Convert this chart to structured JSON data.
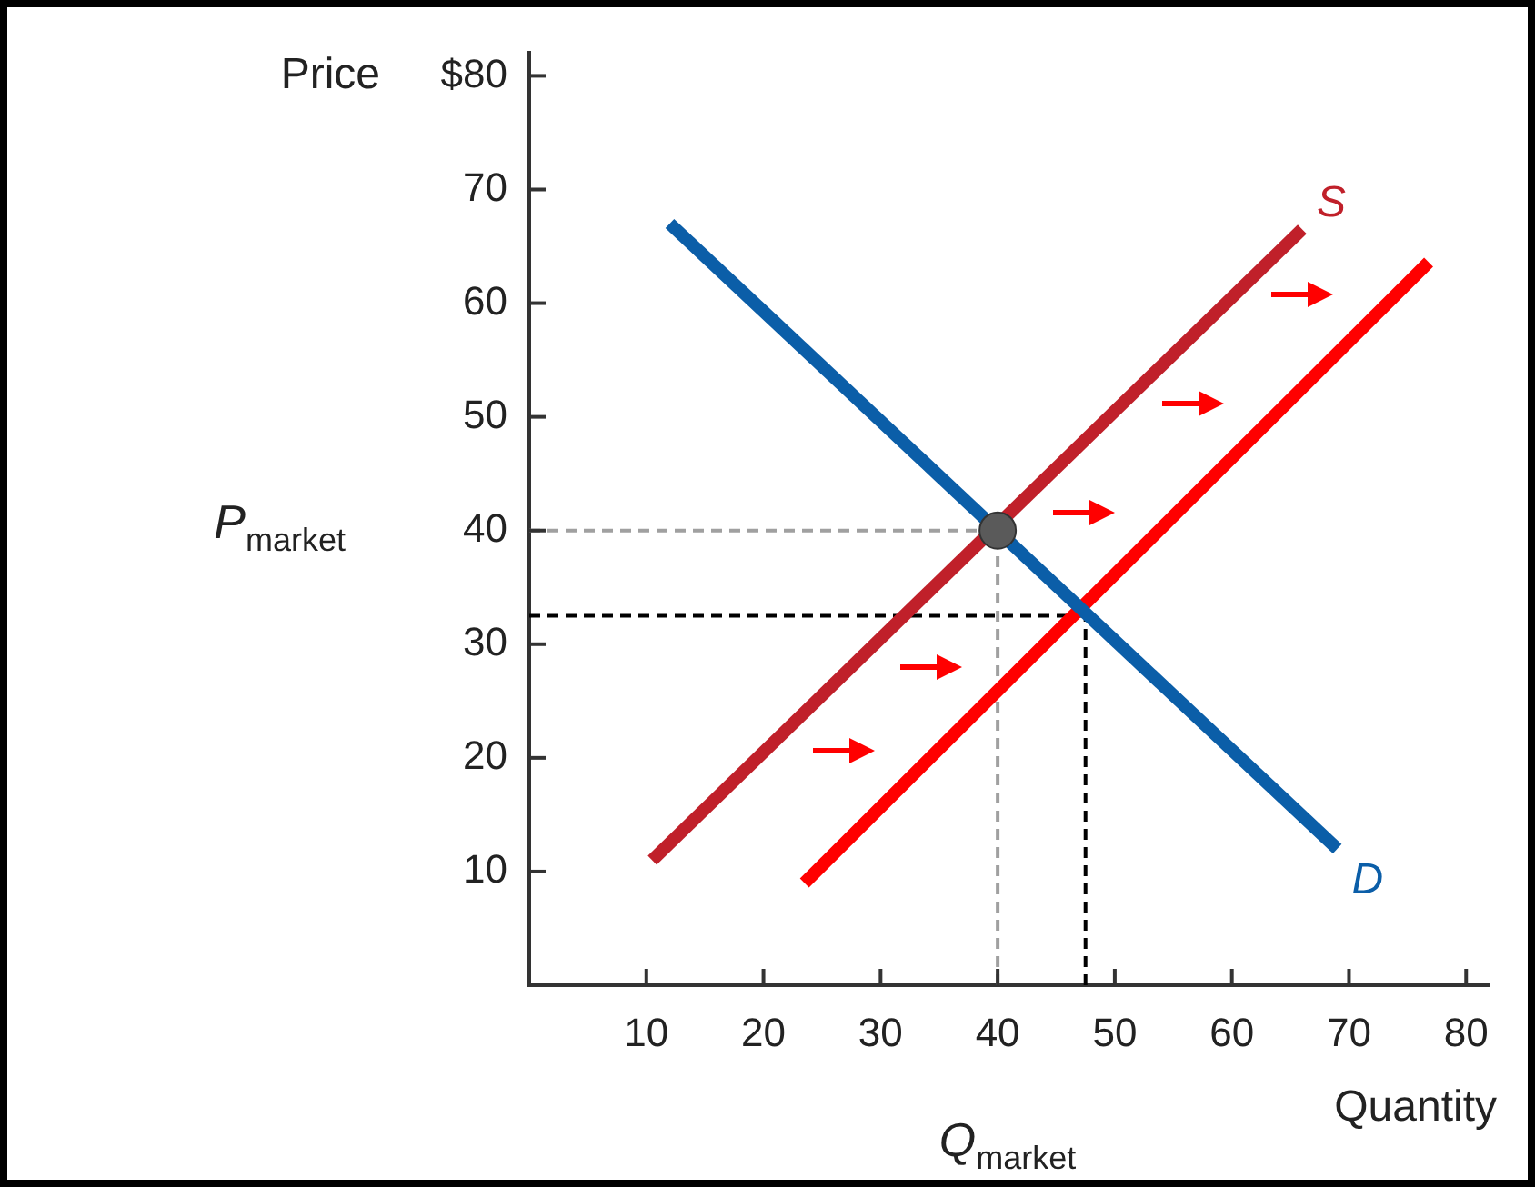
{
  "chart_data": {
    "type": "line",
    "ylabel": "Price",
    "xlabel": "Quantity",
    "xlim": [
      0,
      82
    ],
    "ylim": [
      0,
      82
    ],
    "xticks": [
      10,
      20,
      30,
      40,
      50,
      60,
      70,
      80
    ],
    "yticks": [
      10,
      20,
      30,
      40,
      50,
      60,
      70,
      {
        "value": 80,
        "label": "$80"
      }
    ],
    "grid": false,
    "legend": false,
    "marker": "none",
    "annotations": [
      "P$_{market}$",
      "Q$_{market}$"
    ],
    "series": [
      {
        "x": [
          0,
          40
        ],
        "values": [
          40,
          40
        ],
        "color": "#a0a0a0",
        "line_style": "dashed"
      },
      {
        "x": [
          40,
          40
        ],
        "values": [
          0,
          40
        ],
        "color": "#a0a0a0",
        "line_style": "dashed"
      },
      {
        "x": [
          0,
          47.5
        ],
        "values": [
          32.5,
          32.5
        ],
        "color": "#000000",
        "line_style": "dashed"
      },
      {
        "x": [
          47.5,
          47.5
        ],
        "values": [
          0,
          32.5
        ],
        "color": "#000000",
        "line_style": "dashed"
      },
      {
        "name": "S",
        "x": [
          10.5,
          66
        ],
        "values": [
          11,
          66.5
        ],
        "color": "#c0202a",
        "line_style": "solid"
      },
      {
        "x": [
          23.5,
          76.8
        ],
        "values": [
          9,
          63.6
        ],
        "color": "#ff0000",
        "line_style": "solid"
      },
      {
        "name": "D",
        "x": [
          12,
          69
        ],
        "values": [
          67,
          12
        ],
        "color": "#0b5ea8",
        "line_style": "solid"
      },
      {
        "type": "scatter",
        "x": [
          40
        ],
        "values": [
          40
        ],
        "color": "#5a5a5a",
        "marker": "circle"
      }
    ]
  }
}
